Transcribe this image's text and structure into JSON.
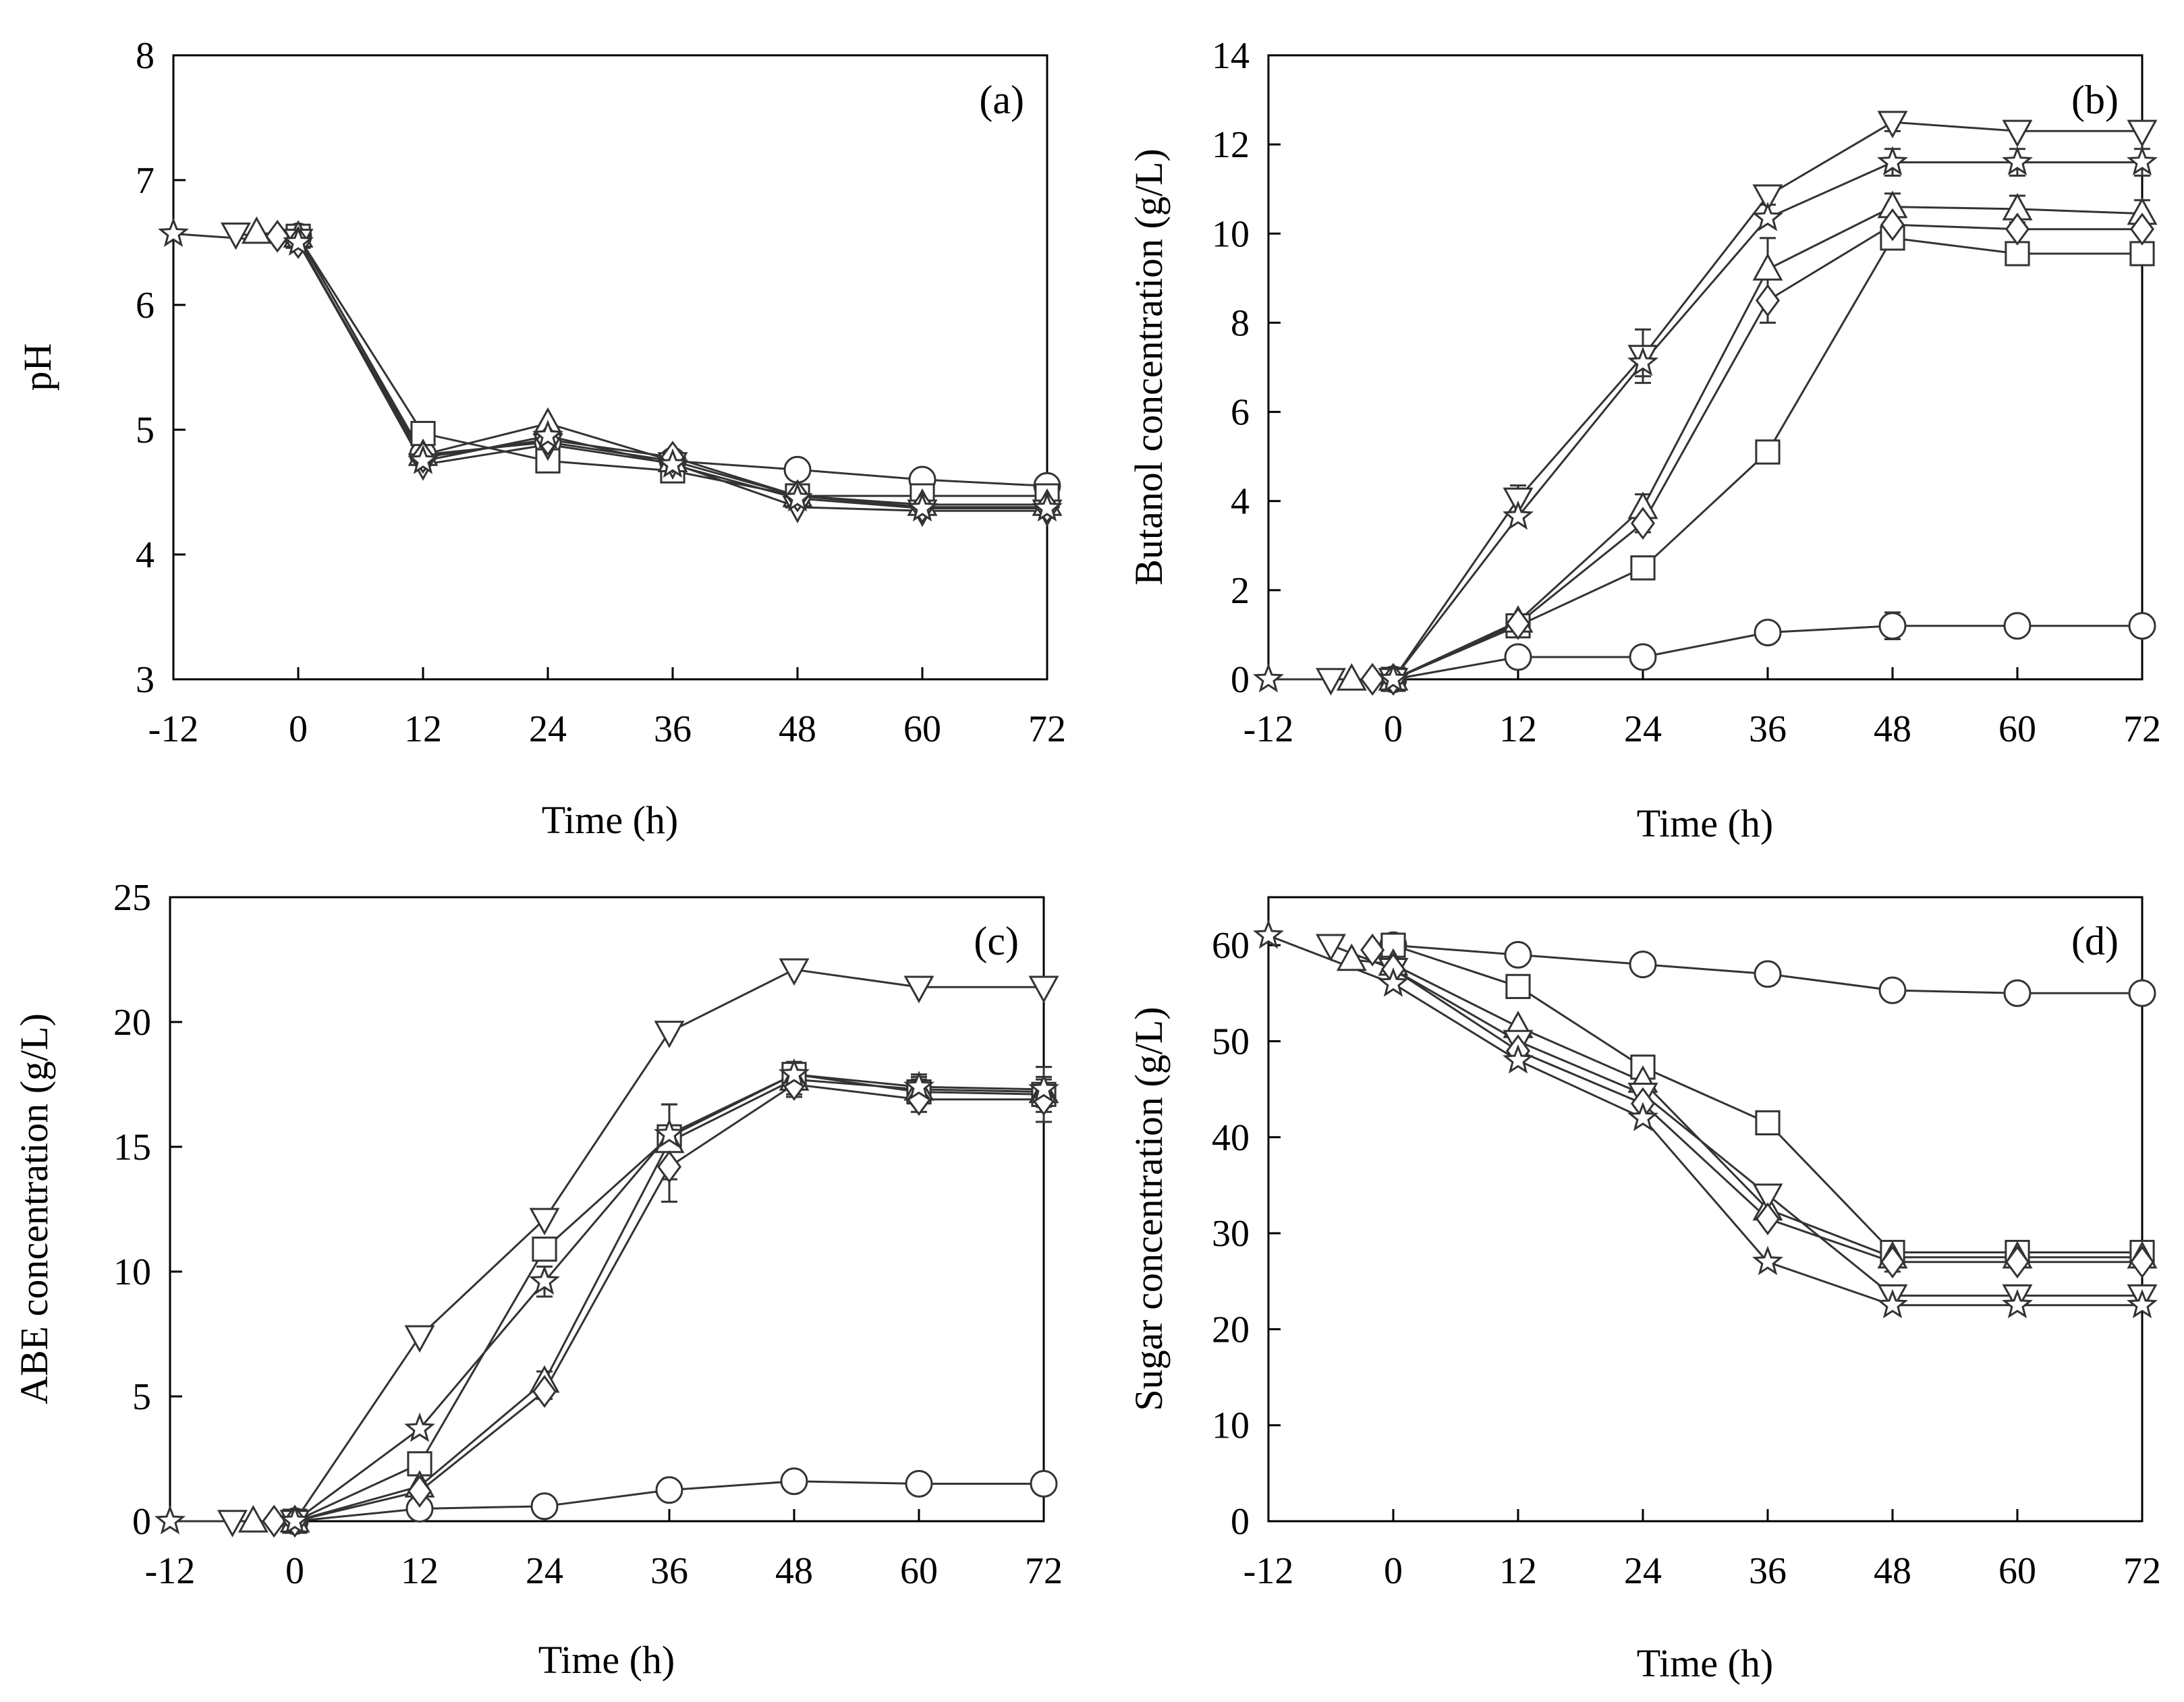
{
  "chart_data": [
    {
      "type": "line",
      "panel_label": "(a)",
      "xlabel": "Time (h)",
      "ylabel": "pH",
      "xlim": [
        -12,
        72
      ],
      "ylim": [
        3,
        8
      ],
      "xticks": [
        -12,
        0,
        12,
        24,
        36,
        48,
        60,
        72
      ],
      "yticks": [
        3,
        4,
        5,
        6,
        7,
        8
      ],
      "series": [
        {
          "name": "circle",
          "marker": "circle",
          "x": [
            0,
            12,
            24,
            36,
            48,
            60,
            72
          ],
          "y": [
            6.55,
            4.8,
            4.9,
            4.75,
            4.68,
            4.6,
            4.55
          ]
        },
        {
          "name": "square",
          "marker": "square",
          "x": [
            0,
            12,
            24,
            36,
            48,
            60,
            72
          ],
          "y": [
            6.55,
            4.97,
            4.75,
            4.67,
            4.47,
            4.47,
            4.47
          ]
        },
        {
          "name": "triangle-up",
          "marker": "triangle-up",
          "x": [
            -4,
            0,
            12,
            24,
            36,
            48,
            60,
            72
          ],
          "y": [
            6.58,
            6.55,
            4.8,
            5.05,
            4.75,
            4.47,
            4.4,
            4.4
          ]
        },
        {
          "name": "triangle-down",
          "marker": "triangle-down",
          "x": [
            -6,
            0,
            12,
            24,
            36,
            48,
            60,
            72
          ],
          "y": [
            6.57,
            6.52,
            4.72,
            4.88,
            4.73,
            4.38,
            4.35,
            4.35
          ]
        },
        {
          "name": "diamond",
          "marker": "diamond",
          "x": [
            -2,
            0,
            12,
            24,
            36,
            48,
            60,
            72
          ],
          "y": [
            6.55,
            6.5,
            4.78,
            4.92,
            4.78,
            4.47,
            4.38,
            4.38
          ]
        },
        {
          "name": "star",
          "marker": "star",
          "x": [
            -12,
            0,
            12,
            24,
            36,
            48,
            60,
            72
          ],
          "y": [
            6.57,
            6.5,
            4.75,
            4.95,
            4.72,
            4.45,
            4.37,
            4.37
          ]
        }
      ]
    },
    {
      "type": "line",
      "panel_label": "(b)",
      "xlabel": "Time (h)",
      "ylabel": "Butanol concentration (g/L)",
      "xlim": [
        -12,
        72
      ],
      "ylim": [
        0,
        14
      ],
      "xticks": [
        -12,
        0,
        12,
        24,
        36,
        48,
        60,
        72
      ],
      "yticks": [
        0,
        2,
        4,
        6,
        8,
        10,
        12,
        14
      ],
      "series": [
        {
          "name": "circle",
          "marker": "circle",
          "x": [
            0,
            12,
            24,
            36,
            48,
            60,
            72
          ],
          "y": [
            0,
            0.5,
            0.5,
            1.05,
            1.2,
            1.2,
            1.2
          ],
          "err": [
            0,
            0,
            0,
            0,
            0.3,
            0,
            0
          ]
        },
        {
          "name": "square",
          "marker": "square",
          "x": [
            0,
            12,
            24,
            36,
            48,
            60,
            72
          ],
          "y": [
            0,
            1.2,
            2.5,
            5.1,
            9.9,
            9.55,
            9.55
          ],
          "err": [
            0,
            0,
            0,
            0,
            0.2,
            0.2,
            0.2
          ]
        },
        {
          "name": "triangle-up",
          "marker": "triangle-up",
          "x": [
            -4,
            0,
            12,
            24,
            36,
            48,
            60,
            72
          ],
          "y": [
            0,
            0,
            1.3,
            3.85,
            9.2,
            10.6,
            10.55,
            10.45
          ],
          "err": [
            0,
            0,
            0,
            0.3,
            0.7,
            0.3,
            0.3,
            0.3
          ]
        },
        {
          "name": "triangle-down",
          "marker": "triangle-down",
          "x": [
            -6,
            0,
            12,
            24,
            36,
            48,
            60,
            72
          ],
          "y": [
            0,
            0,
            4.05,
            7.25,
            10.85,
            12.5,
            12.3,
            12.3
          ],
          "err": [
            0,
            0,
            0.3,
            0.6,
            0.2,
            0.2,
            0,
            0
          ]
        },
        {
          "name": "diamond",
          "marker": "diamond",
          "x": [
            -2,
            0,
            12,
            24,
            36,
            48,
            60,
            72
          ],
          "y": [
            0,
            0,
            1.25,
            3.5,
            8.5,
            10.2,
            10.1,
            10.1
          ],
          "err": [
            0,
            0,
            0,
            0.2,
            0.5,
            0.3,
            0.3,
            0.3
          ]
        },
        {
          "name": "star",
          "marker": "star",
          "x": [
            -12,
            0,
            12,
            24,
            36,
            48,
            60,
            72
          ],
          "y": [
            0,
            0,
            3.65,
            7.1,
            10.35,
            11.6,
            11.6,
            11.6
          ],
          "err": [
            0,
            0,
            0,
            0.3,
            0,
            0.3,
            0.3,
            0.3
          ]
        }
      ]
    },
    {
      "type": "line",
      "panel_label": "(c)",
      "xlabel": "Time (h)",
      "ylabel": "ABE concentration (g/L)",
      "xlim": [
        -12,
        72
      ],
      "ylim": [
        0,
        25
      ],
      "xticks": [
        -12,
        0,
        12,
        24,
        36,
        48,
        60,
        72
      ],
      "yticks": [
        0,
        5,
        10,
        15,
        20,
        25
      ],
      "series": [
        {
          "name": "circle",
          "marker": "circle",
          "x": [
            0,
            12,
            24,
            36,
            48,
            60,
            72
          ],
          "y": [
            0,
            0.5,
            0.6,
            1.25,
            1.6,
            1.5,
            1.5
          ]
        },
        {
          "name": "square",
          "marker": "square",
          "x": [
            0,
            12,
            24,
            36,
            48,
            60,
            72
          ],
          "y": [
            0,
            2.3,
            10.9,
            15.4,
            17.9,
            17.2,
            17.1
          ],
          "err": [
            0,
            0,
            0,
            1.3,
            0.5,
            0.5,
            1.1
          ]
        },
        {
          "name": "triangle-up",
          "marker": "triangle-up",
          "x": [
            -4,
            0,
            12,
            24,
            36,
            48,
            60,
            72
          ],
          "y": [
            0,
            0,
            1.4,
            5.6,
            15.2,
            17.7,
            17.3,
            17.2
          ],
          "err": [
            0,
            0,
            0,
            0.4,
            1.5,
            0.6,
            0.6,
            0.6
          ]
        },
        {
          "name": "triangle-down",
          "marker": "triangle-down",
          "x": [
            -6,
            0,
            12,
            24,
            36,
            48,
            60,
            72
          ],
          "y": [
            0,
            0,
            7.4,
            12.1,
            19.6,
            22.1,
            21.4,
            21.4
          ]
        },
        {
          "name": "diamond",
          "marker": "diamond",
          "x": [
            -2,
            0,
            12,
            24,
            36,
            48,
            60,
            72
          ],
          "y": [
            0,
            0,
            1.2,
            5.2,
            14.2,
            17.5,
            16.9,
            16.9
          ],
          "err": [
            0,
            0,
            0,
            0.3,
            1.4,
            0.5,
            0.5,
            0.5
          ]
        },
        {
          "name": "star",
          "marker": "star",
          "x": [
            -12,
            0,
            12,
            24,
            36,
            48,
            60,
            72
          ],
          "y": [
            0,
            0,
            3.7,
            9.6,
            15.5,
            17.9,
            17.4,
            17.3
          ],
          "err": [
            0,
            0,
            0,
            0.6,
            0,
            0.5,
            0.4,
            0.4
          ]
        }
      ]
    },
    {
      "type": "line",
      "panel_label": "(d)",
      "xlabel": "Time (h)",
      "ylabel": "Sugar concentration (g/L)",
      "xlim": [
        -12,
        72
      ],
      "ylim": [
        0,
        65
      ],
      "xticks": [
        -12,
        0,
        12,
        24,
        36,
        48,
        60,
        72
      ],
      "yticks": [
        0,
        10,
        20,
        30,
        40,
        50,
        60
      ],
      "series": [
        {
          "name": "circle",
          "marker": "circle",
          "x": [
            0,
            12,
            24,
            36,
            48,
            60,
            72
          ],
          "y": [
            60,
            59,
            58,
            57,
            55.3,
            55,
            55
          ]
        },
        {
          "name": "square",
          "marker": "square",
          "x": [
            0,
            12,
            24,
            36,
            48,
            60,
            72
          ],
          "y": [
            60,
            55.7,
            47.3,
            41.5,
            28,
            28,
            28
          ]
        },
        {
          "name": "triangle-up",
          "marker": "triangle-up",
          "x": [
            -4,
            0,
            12,
            24,
            36,
            48,
            60,
            72
          ],
          "y": [
            58.5,
            58,
            51.5,
            45.8,
            32.5,
            27.5,
            27.5,
            27.5
          ],
          "err": [
            0,
            0,
            0,
            0,
            0,
            1.5,
            0,
            0
          ]
        },
        {
          "name": "triangle-down",
          "marker": "triangle-down",
          "x": [
            -6,
            0,
            12,
            24,
            36,
            48,
            60,
            72
          ],
          "y": [
            60,
            57.5,
            50,
            44.5,
            34,
            23.5,
            23.5,
            23.5
          ]
        },
        {
          "name": "diamond",
          "marker": "diamond",
          "x": [
            -2,
            0,
            12,
            24,
            36,
            48,
            60,
            72
          ],
          "y": [
            59.5,
            57.5,
            49,
            43.5,
            31.5,
            27,
            27,
            27
          ]
        },
        {
          "name": "star",
          "marker": "star",
          "x": [
            -12,
            0,
            12,
            24,
            36,
            48,
            60,
            72
          ],
          "y": [
            61,
            56,
            48,
            42,
            27,
            22.5,
            22.5,
            22.5
          ]
        }
      ]
    }
  ]
}
